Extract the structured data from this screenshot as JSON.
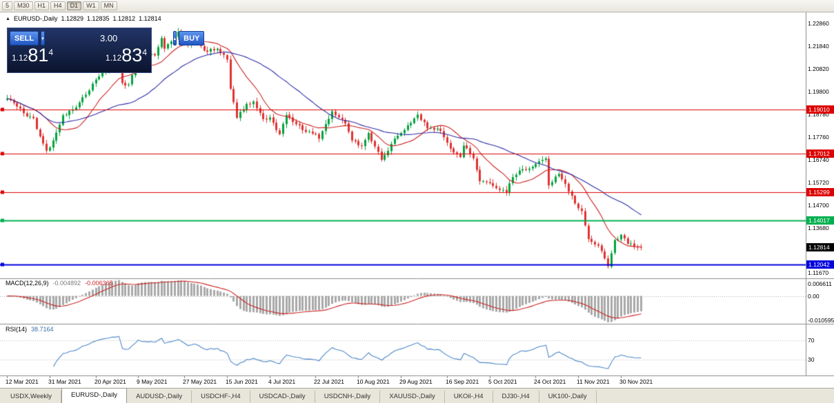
{
  "toolbar": {
    "timeframes": [
      "5",
      "M30",
      "H1",
      "H4",
      "D1",
      "W1",
      "MN"
    ],
    "active": "D1"
  },
  "chart_header": {
    "symbol": "EURUSD-,Daily",
    "open": "1.12829",
    "high": "1.12835",
    "low": "1.12812",
    "close": "1.12814"
  },
  "icons": {
    "panel_toggle": "▲",
    "volume_down": "▾",
    "volume_up": "▴"
  },
  "trade_panel": {
    "sell_label": "SELL",
    "buy_label": "BUY",
    "volume": "3.00",
    "sell_price": {
      "base": "1.12",
      "pips": "81",
      "fraction": "4"
    },
    "buy_price": {
      "base": "1.12",
      "pips": "83",
      "fraction": "4"
    }
  },
  "indicators": {
    "macd": {
      "label": "MACD(12,26,9)",
      "value_main": "-0.004892",
      "value_signal": "-0.006365",
      "fast_period": 12,
      "slow_period": 26,
      "signal_period": 9,
      "range": [
        -0.010595,
        0.006611
      ],
      "axis_labels": [
        "0.006611",
        "0.00",
        "-0.010595"
      ]
    },
    "rsi": {
      "label": "RSI(14)",
      "value": "38.7164",
      "period": 14,
      "levels": [
        70,
        30
      ],
      "axis_labels": [
        "70",
        "30"
      ]
    },
    "ma_fast": {
      "period": 13
    },
    "ma_slow": {
      "period": 34
    }
  },
  "tabs": [
    {
      "label": "USDX,Weekly",
      "active": false
    },
    {
      "label": "EURUSD-,Daily",
      "active": true
    },
    {
      "label": "AUDUSD-,Daily",
      "active": false
    },
    {
      "label": "USDCHF-,H4",
      "active": false
    },
    {
      "label": "USDCAD-,Daily",
      "active": false
    },
    {
      "label": "USDCNH-,Daily",
      "active": false
    },
    {
      "label": "XAUUSD-,Daily",
      "active": false
    },
    {
      "label": "UKOil-,H4",
      "active": false
    },
    {
      "label": "DJ30-,H4",
      "active": false
    },
    {
      "label": "UK100-,Daily",
      "active": false
    }
  ],
  "chart_data": {
    "type": "candlestick",
    "symbol": "EURUSD",
    "period": "Daily",
    "title": "EURUSD-,Daily 1.12829 1.12835 1.12812 1.12814",
    "ylim": [
      1.1149,
      1.234
    ],
    "num_candles": 194,
    "close_anchors": [
      [
        0,
        1.195
      ],
      [
        2,
        1.193
      ],
      [
        4,
        1.1905
      ],
      [
        6,
        1.187
      ],
      [
        8,
        1.1862
      ],
      [
        10,
        1.178
      ],
      [
        12,
        1.1716
      ],
      [
        13,
        1.173
      ],
      [
        17,
        1.1875
      ],
      [
        20,
        1.19
      ],
      [
        24,
        1.1967
      ],
      [
        27,
        1.2035
      ],
      [
        31,
        1.209
      ],
      [
        34,
        1.212
      ],
      [
        35,
        1.202
      ],
      [
        37,
        1.2013
      ],
      [
        40,
        1.2163
      ],
      [
        42,
        1.2147
      ],
      [
        45,
        1.2144
      ],
      [
        47,
        1.2222
      ],
      [
        48,
        1.2174
      ],
      [
        52,
        1.225
      ],
      [
        55,
        1.2193
      ],
      [
        57,
        1.2216
      ],
      [
        60,
        1.2166
      ],
      [
        64,
        1.2174
      ],
      [
        67,
        1.2125
      ],
      [
        68,
        1.1994
      ],
      [
        70,
        1.1863
      ],
      [
        73,
        1.1926
      ],
      [
        75,
        1.1937
      ],
      [
        78,
        1.1858
      ],
      [
        80,
        1.1865
      ],
      [
        83,
        1.179
      ],
      [
        85,
        1.1876
      ],
      [
        88,
        1.1835
      ],
      [
        91,
        1.18
      ],
      [
        93,
        1.1793
      ],
      [
        95,
        1.177
      ],
      [
        99,
        1.1893
      ],
      [
        103,
        1.1838
      ],
      [
        105,
        1.1762
      ],
      [
        108,
        1.1738
      ],
      [
        110,
        1.1795
      ],
      [
        114,
        1.1675
      ],
      [
        115,
        1.1697
      ],
      [
        118,
        1.177
      ],
      [
        120,
        1.1795
      ],
      [
        125,
        1.1878
      ],
      [
        128,
        1.1817
      ],
      [
        132,
        1.1805
      ],
      [
        135,
        1.1725
      ],
      [
        138,
        1.1687
      ],
      [
        139,
        1.1738
      ],
      [
        142,
        1.1682
      ],
      [
        144,
        1.1579
      ],
      [
        148,
        1.1558
      ],
      [
        152,
        1.153
      ],
      [
        154,
        1.1597
      ],
      [
        157,
        1.1633
      ],
      [
        160,
        1.1644
      ],
      [
        164,
        1.1681
      ],
      [
        165,
        1.156
      ],
      [
        168,
        1.1611
      ],
      [
        170,
        1.1567
      ],
      [
        173,
        1.1479
      ],
      [
        175,
        1.1445
      ],
      [
        177,
        1.1319
      ],
      [
        180,
        1.1289
      ],
      [
        183,
        1.1197
      ],
      [
        185,
        1.1315
      ],
      [
        187,
        1.1338
      ],
      [
        189,
        1.1298
      ],
      [
        191,
        1.1285
      ],
      [
        193,
        1.12814
      ]
    ],
    "horizontal_lines": [
      {
        "price": 1.1901,
        "label": "1.19010",
        "color": "#dd0000",
        "width": 1
      },
      {
        "price": 1.17012,
        "label": "1.17012",
        "color": "#dd0000",
        "width": 1
      },
      {
        "price": 1.15299,
        "label": "1.15299",
        "color": "#dd0000",
        "width": 1
      },
      {
        "price": 1.14017,
        "label": "1.14017",
        "color": "#00b050",
        "width": 2
      },
      {
        "price": 1.12042,
        "label": "1.12042",
        "color": "#0000dd",
        "width": 2
      }
    ],
    "current_price": {
      "value": 1.12814,
      "label": "1.12814",
      "color": "#000000"
    },
    "price_axis_labels": [
      "1.22860",
      "1.21840",
      "1.20820",
      "1.19800",
      "1.18780",
      "1.17760",
      "1.16740",
      "1.15720",
      "1.14700",
      "1.13680",
      "1.11670"
    ],
    "time_axis_labels": [
      [
        "12 Mar 2021",
        0
      ],
      [
        "31 Mar 2021",
        13
      ],
      [
        "20 Apr 2021",
        27
      ],
      [
        "9 May 2021",
        40
      ],
      [
        "27 May 2021",
        54
      ],
      [
        "15 Jun 2021",
        67
      ],
      [
        "4 Jul 2021",
        80
      ],
      [
        "22 Jul 2021",
        94
      ],
      [
        "10 Aug 2021",
        107
      ],
      [
        "29 Aug 2021",
        120
      ],
      [
        "16 Sep 2021",
        134
      ],
      [
        "5 Oct 2021",
        147
      ],
      [
        "24 Oct 2021",
        161
      ],
      [
        "11 Nov 2021",
        174
      ],
      [
        "30 Nov 2021",
        187
      ]
    ],
    "colors": {
      "up": "#00a33c",
      "down": "#e03131",
      "ma_fast": "#cc2222",
      "ma_slow": "#2b2ba8",
      "macd_hist": "#a8a8a8",
      "macd_signal": "#cc2222",
      "rsi": "#4a86c8"
    }
  }
}
